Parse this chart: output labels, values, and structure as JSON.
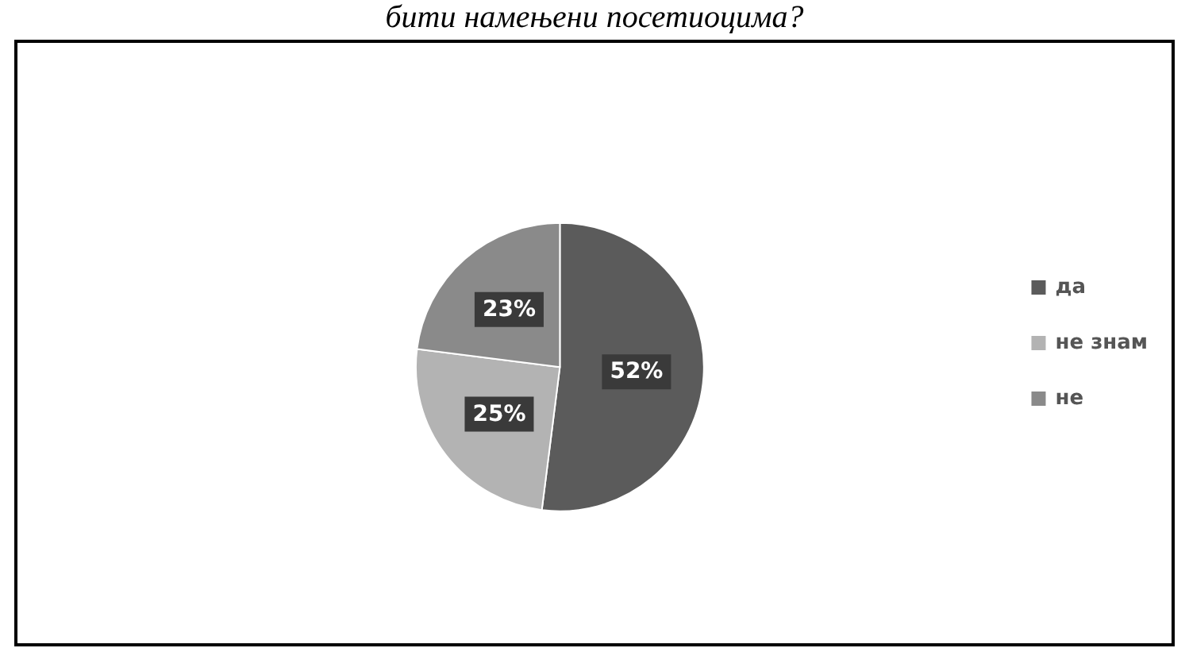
{
  "chart_data": {
    "type": "pie",
    "title": "бити намењени посетиоцима?",
    "categories": [
      "да",
      "не знам",
      "не"
    ],
    "values": [
      52,
      25,
      23
    ],
    "colors": [
      "#5b5b5b",
      "#b3b3b3",
      "#8a8a8a"
    ],
    "value_labels": [
      "52%",
      "25%",
      "23%"
    ],
    "legend": "right"
  }
}
